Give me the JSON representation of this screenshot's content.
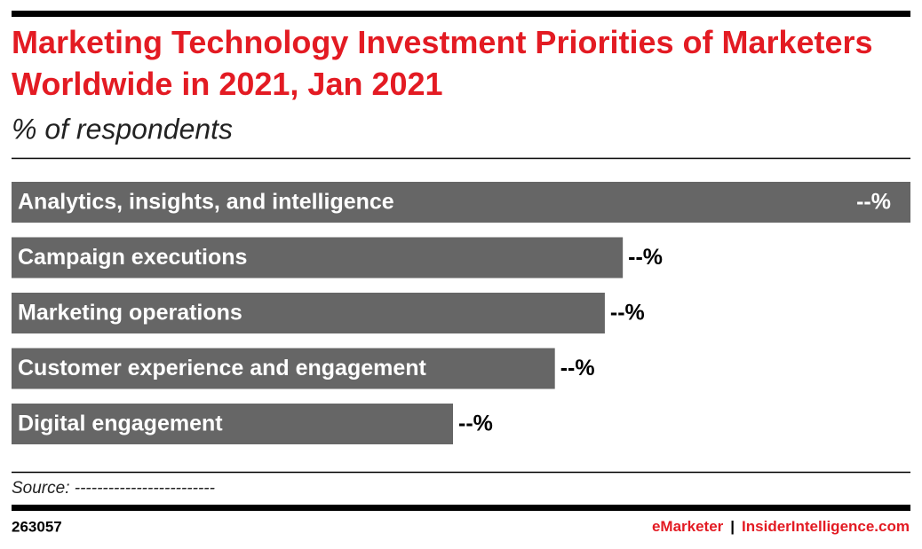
{
  "chart_data": {
    "type": "hbar",
    "title": "Marketing Technology Investment Priorities of Marketers Worldwide in 2021, Jan 2021",
    "subtitle": "% of respondents",
    "categories": [
      "Analytics, insights, and intelligence",
      "Campaign executions",
      "Marketing operations",
      "Customer experience and engagement",
      "Digital engagement"
    ],
    "values": [
      45,
      30.6,
      29.7,
      27.2,
      22.1
    ],
    "value_labels": [
      "--%",
      "--%",
      "--%",
      "--%",
      "--%"
    ],
    "color": "#666666",
    "source": "Source: -------------------------",
    "chart_id": "263057",
    "brand": "eMarketer",
    "separator": "|",
    "site": "InsiderIntelligence.com"
  }
}
